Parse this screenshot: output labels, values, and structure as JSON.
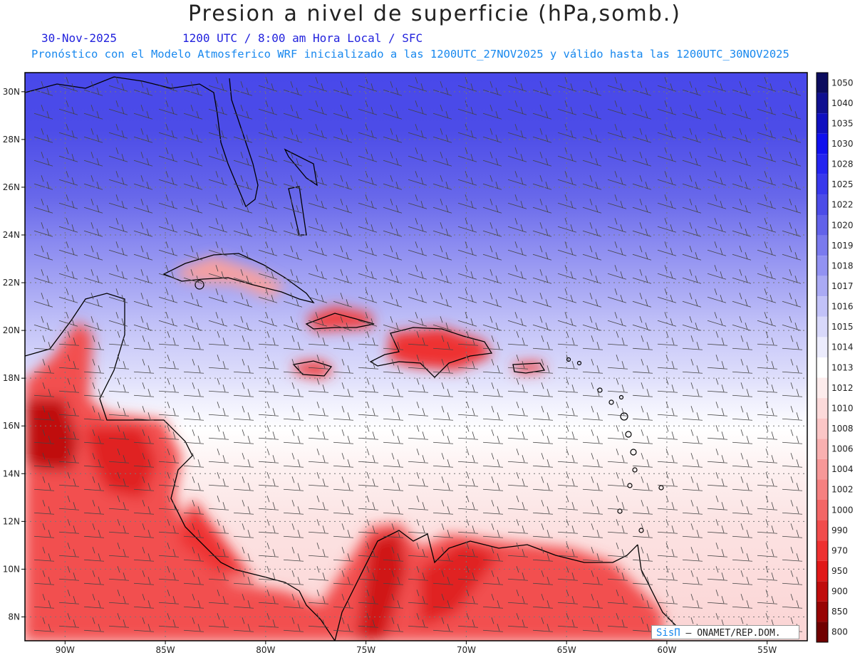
{
  "title": "Presion a nivel de superficie (hPa,somb.)",
  "date": "30-Nov-2025",
  "time_label": "1200 UTC / 8:00 am Hora Local / SFC",
  "model_line": "Pronóstico con el Modelo Atmosferico WRF inicializado a las 1200UTC_27NOV2025 y válido hasta las  1200UTC_30NOV2025",
  "credit": {
    "brand": "SisΠ",
    "text": "– ONAMET/REP.DOM."
  },
  "map": {
    "lon_range": [
      -92,
      -53
    ],
    "lat_range": [
      7,
      30.8
    ],
    "lon_ticks": [
      "90W",
      "85W",
      "80W",
      "75W",
      "70W",
      "65W",
      "60W",
      "55W"
    ],
    "lat_ticks": [
      "30N",
      "28N",
      "26N",
      "24N",
      "22N",
      "20N",
      "18N",
      "16N",
      "14N",
      "12N",
      "10N",
      "8N"
    ]
  },
  "colorbar": {
    "levels": [
      "1050",
      "1040",
      "1035",
      "1030",
      "1028",
      "1025",
      "1022",
      "1020",
      "1019",
      "1018",
      "1017",
      "1016",
      "1015",
      "1014",
      "1013",
      "1012",
      "1010",
      "1008",
      "1006",
      "1004",
      "1002",
      "1000",
      "990",
      "970",
      "950",
      "900",
      "850",
      "800"
    ],
    "colors": [
      "#0c0c5e",
      "#101090",
      "#1010c0",
      "#1010ee",
      "#2424f0",
      "#3838ec",
      "#4c4ce8",
      "#6262ea",
      "#7a7aee",
      "#9292f2",
      "#aaaaf4",
      "#c2c2f8",
      "#d8d8fa",
      "#ececfd",
      "#ffffff",
      "#fdecec",
      "#fcdada",
      "#fbc6c6",
      "#f9b0b0",
      "#f79898",
      "#f58080",
      "#f36666",
      "#f14c4c",
      "#ee3030",
      "#e01818",
      "#c00c0c",
      "#980404",
      "#700000"
    ]
  }
}
